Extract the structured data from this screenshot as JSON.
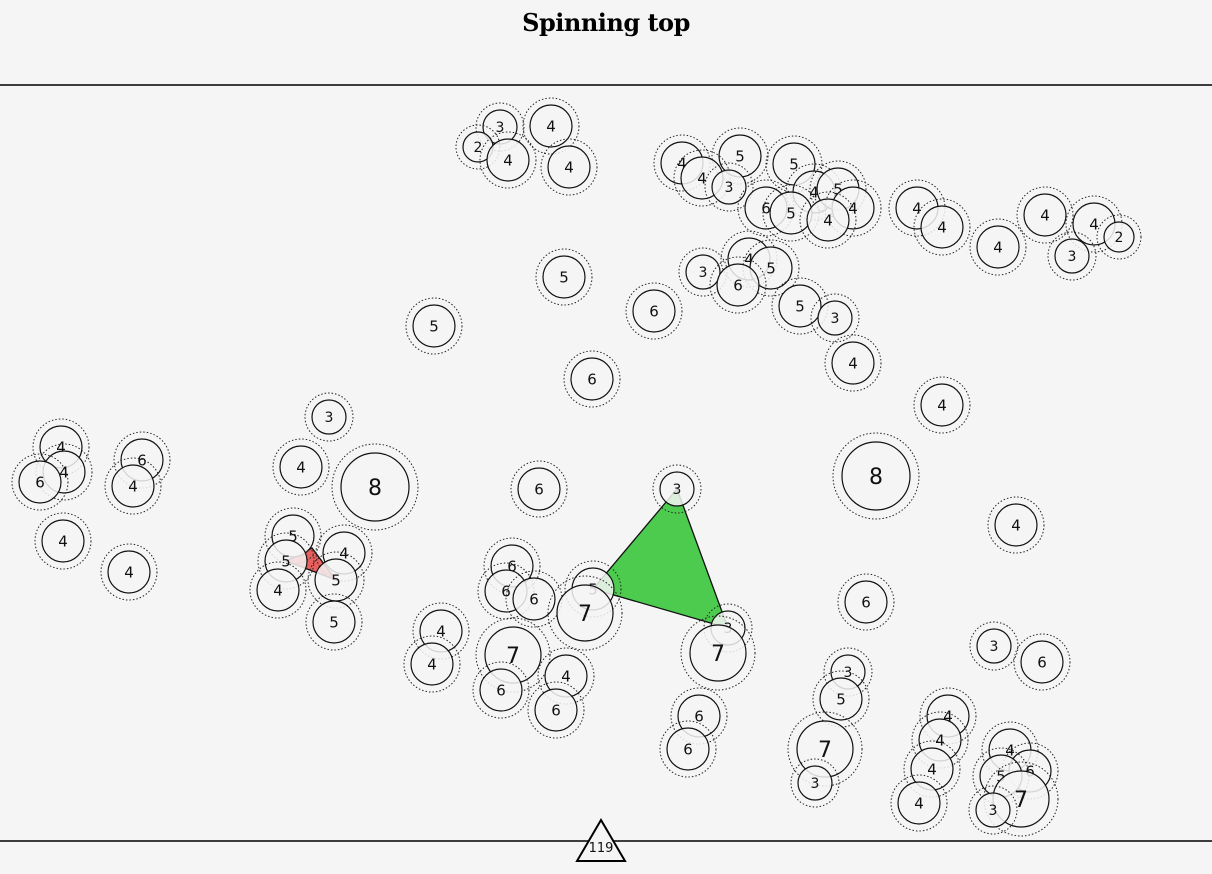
{
  "title": "Spinning top",
  "counter": "119",
  "colors": {
    "background": "#f6f5f5",
    "piece_fill": "#f6f5f5",
    "stroke": "#111111",
    "selection_large": "#4ccb4f",
    "selection_small": "#e8605e"
  },
  "pieces": [
    {
      "id": "p01",
      "label": "3"
    },
    {
      "id": "p02",
      "label": "4"
    },
    {
      "id": "p03",
      "label": "2"
    },
    {
      "id": "p04",
      "label": "4"
    },
    {
      "id": "p05",
      "label": "4"
    },
    {
      "id": "p06",
      "label": "4"
    },
    {
      "id": "p07",
      "label": "5"
    },
    {
      "id": "p08",
      "label": "5"
    },
    {
      "id": "p09",
      "label": "4"
    },
    {
      "id": "p10",
      "label": "3"
    },
    {
      "id": "p11",
      "label": "4"
    },
    {
      "id": "p12",
      "label": "5"
    },
    {
      "id": "p13",
      "label": "6"
    },
    {
      "id": "p14",
      "label": "5"
    },
    {
      "id": "p15",
      "label": "4"
    },
    {
      "id": "p16",
      "label": "4"
    },
    {
      "id": "p17",
      "label": "4"
    },
    {
      "id": "p18",
      "label": "4"
    },
    {
      "id": "p19",
      "label": "4"
    },
    {
      "id": "p20",
      "label": "4"
    },
    {
      "id": "p21",
      "label": "4"
    },
    {
      "id": "p22",
      "label": "2"
    },
    {
      "id": "p23",
      "label": "3"
    },
    {
      "id": "p24",
      "label": "5"
    },
    {
      "id": "p25",
      "label": "3"
    },
    {
      "id": "p26",
      "label": "4"
    },
    {
      "id": "p27",
      "label": "5"
    },
    {
      "id": "p28",
      "label": "6"
    },
    {
      "id": "p29",
      "label": "6"
    },
    {
      "id": "p30",
      "label": "5"
    },
    {
      "id": "p31",
      "label": "3"
    },
    {
      "id": "p32",
      "label": "5"
    },
    {
      "id": "p33",
      "label": "6"
    },
    {
      "id": "p34",
      "label": "4"
    },
    {
      "id": "p35",
      "label": "3"
    },
    {
      "id": "p36",
      "label": "4"
    },
    {
      "id": "p37",
      "label": "4"
    },
    {
      "id": "p38",
      "label": "6"
    },
    {
      "id": "p39",
      "label": "4"
    },
    {
      "id": "p40",
      "label": "6"
    },
    {
      "id": "p41",
      "label": "8"
    },
    {
      "id": "p42",
      "label": "8"
    },
    {
      "id": "p43",
      "label": "4"
    },
    {
      "id": "p44",
      "label": "4"
    },
    {
      "id": "p45",
      "label": "3"
    },
    {
      "id": "p46",
      "label": "6"
    },
    {
      "id": "p47",
      "label": "4"
    },
    {
      "id": "p48",
      "label": "4"
    },
    {
      "id": "p49",
      "label": "5"
    },
    {
      "id": "p50",
      "label": "4"
    },
    {
      "id": "p51",
      "label": "5"
    },
    {
      "id": "p52",
      "label": "4"
    },
    {
      "id": "p53",
      "label": "4"
    },
    {
      "id": "p54",
      "label": "6"
    },
    {
      "id": "p55",
      "label": "6"
    },
    {
      "id": "p56",
      "label": "6"
    },
    {
      "id": "p57",
      "label": "5"
    },
    {
      "id": "p58",
      "label": "5"
    },
    {
      "id": "p59",
      "label": "3"
    },
    {
      "id": "p60",
      "label": "7"
    },
    {
      "id": "p61",
      "label": "6"
    },
    {
      "id": "p62",
      "label": "5"
    },
    {
      "id": "p63",
      "label": "4"
    },
    {
      "id": "p64",
      "label": "3"
    },
    {
      "id": "p65",
      "label": "7"
    },
    {
      "id": "p66",
      "label": "7"
    },
    {
      "id": "p67",
      "label": "6"
    },
    {
      "id": "p68",
      "label": "4"
    },
    {
      "id": "p69",
      "label": "4"
    },
    {
      "id": "p70",
      "label": "3"
    },
    {
      "id": "p71",
      "label": "6"
    },
    {
      "id": "p72",
      "label": "5"
    },
    {
      "id": "p73",
      "label": "6"
    },
    {
      "id": "p74",
      "label": "6"
    },
    {
      "id": "p75",
      "label": "4"
    },
    {
      "id": "p76",
      "label": "6"
    },
    {
      "id": "p77",
      "label": "4"
    },
    {
      "id": "p78",
      "label": "7"
    },
    {
      "id": "p79",
      "label": "4"
    },
    {
      "id": "p80",
      "label": "6"
    },
    {
      "id": "p81",
      "label": "4"
    },
    {
      "id": "p82",
      "label": "5"
    },
    {
      "id": "p83",
      "label": "3"
    },
    {
      "id": "p84",
      "label": "7"
    },
    {
      "id": "p85",
      "label": "4"
    },
    {
      "id": "p86",
      "label": "3"
    }
  ]
}
